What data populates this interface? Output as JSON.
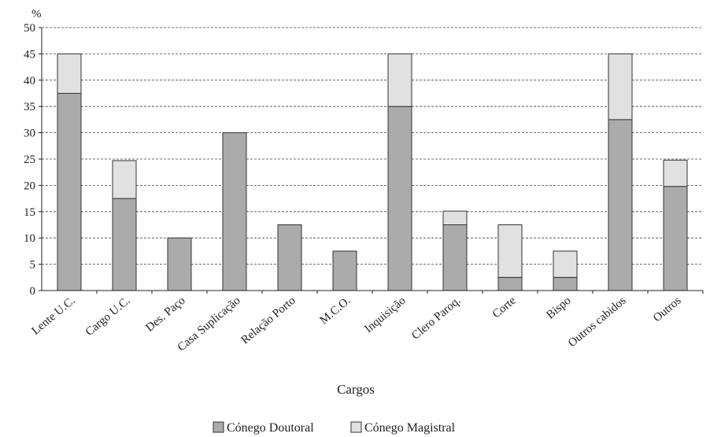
{
  "chart_data": {
    "type": "bar",
    "stacked": true,
    "ylabel": "%",
    "xlabel": "Cargos",
    "ylim": [
      0,
      50
    ],
    "yticks": [
      0,
      5,
      10,
      15,
      20,
      25,
      30,
      35,
      40,
      45,
      50
    ],
    "grid": "horizontal dashed",
    "legend_position": "bottom-center",
    "categories": [
      "Lente U.C.",
      "Cargo U.C.",
      "Des. Paço",
      "Casa Suplicação",
      "Relação Porto",
      "M.C.O.",
      "Inquisição",
      "Clero Paroq.",
      "Corte",
      "Bispo",
      "Outros cabidos",
      "Outros"
    ],
    "series": [
      {
        "name": "Cónego Doutoral",
        "color": "#ababab",
        "values": [
          37.5,
          17.5,
          10,
          30,
          12.5,
          7.5,
          35,
          12.5,
          2.5,
          2.5,
          32.5,
          19.8
        ]
      },
      {
        "name": "Cónego Magistral",
        "color": "#e1e1e1",
        "values": [
          7.5,
          7.2,
          0,
          0,
          0,
          0,
          10,
          2.6,
          10,
          5,
          12.5,
          5
        ]
      }
    ]
  }
}
